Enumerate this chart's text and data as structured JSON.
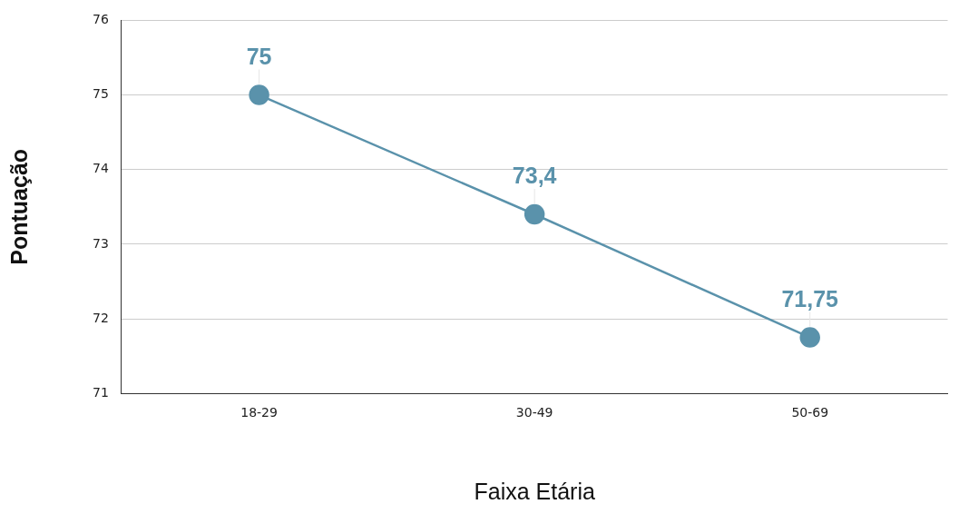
{
  "chart_data": {
    "type": "line",
    "xlabel": "Faixa Etária",
    "ylabel": "Pontuação",
    "categories": [
      "18-29",
      "30-49",
      "50-69"
    ],
    "series": [
      {
        "color": "#5a92ab",
        "values": [
          75,
          73.4,
          71.75
        ],
        "value_labels": [
          "75",
          "73,4",
          "71,75"
        ]
      }
    ],
    "ylim": [
      71,
      76
    ],
    "yticks": [
      71,
      72,
      73,
      74,
      75,
      76
    ],
    "grid": "y",
    "legend": false,
    "marker": "circle",
    "line_style": "solid"
  }
}
